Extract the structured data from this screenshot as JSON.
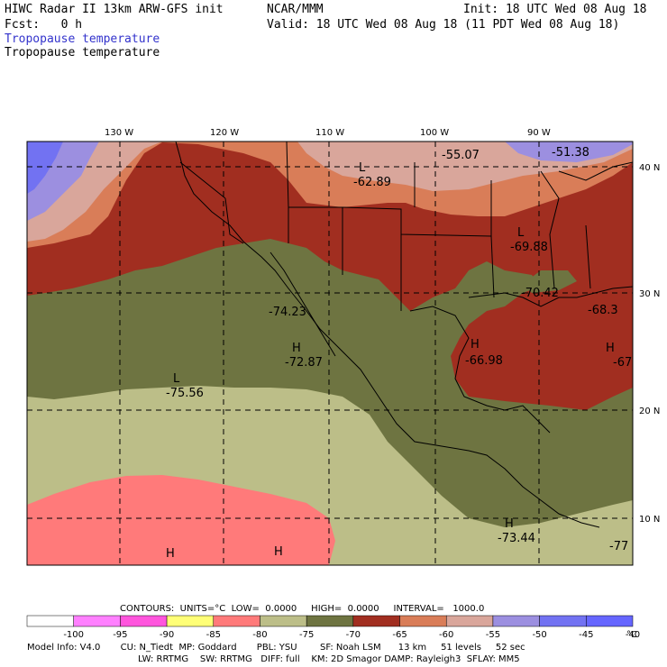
{
  "header": {
    "title_left": "HIWC Radar II 13km ARW-GFS init",
    "title_mid": "NCAR/MMM",
    "init_text": "Init: 18 UTC Wed 08 Aug 18",
    "fcst_text": "Fcst:   0 h",
    "valid_text": "Valid: 18 UTC Wed 08 Aug 18 (11 PDT Wed 08 Aug 18)",
    "field_colored": "Tropopause temperature",
    "field_black": "Tropopause temperature"
  },
  "map": {
    "lon_labels": [
      "130 W",
      "120 W",
      "110 W",
      "100 W",
      "90 W"
    ],
    "lat_labels": [
      "40 N",
      "30 N",
      "20 N",
      "10 N"
    ],
    "extrema": [
      {
        "type": "L",
        "value": "-62.89"
      },
      {
        "type": "",
        "value": "-55.07"
      },
      {
        "type": "",
        "value": "-51.38"
      },
      {
        "type": "L",
        "value": "-69.88"
      },
      {
        "type": "",
        "value": "-70.42"
      },
      {
        "type": "",
        "value": "-68.3"
      },
      {
        "type": "",
        "value": "-74.23"
      },
      {
        "type": "H",
        "value": "-72.87"
      },
      {
        "type": "H",
        "value": "-66.98"
      },
      {
        "type": "H",
        "value": "-67"
      },
      {
        "type": "L",
        "value": "-75.56"
      },
      {
        "type": "H",
        "value": "-73.44"
      },
      {
        "type": "",
        "value": "-77"
      },
      {
        "type": "H",
        "value": ""
      },
      {
        "type": "H",
        "value": ""
      }
    ],
    "colors": {
      "red_brown": "#a12e20",
      "orange": "#d97d58",
      "pink": "#d9a69b",
      "lavender": "#9c8fe0",
      "blue": "#7272f2",
      "olive": "#6e7441",
      "khaki": "#bcbe88",
      "salmon": "#ff7a7a"
    }
  },
  "colorbar": {
    "contour_line": "CONTOURS:  UNITS=°C  LOW=  0.0000     HIGH=  0.0000     INTERVAL=   1000.0",
    "ticks": [
      "-100",
      "-95",
      "-90",
      "-85",
      "-80",
      "-75",
      "-70",
      "-65",
      "-60",
      "-55",
      "-50",
      "-45",
      "-40"
    ],
    "unit": "°C",
    "colors": [
      "#ffffff",
      "#ff80ff",
      "#ff55dd",
      "#ffff77",
      "#ff7a7a",
      "#bcbe88",
      "#6e7441",
      "#a12e20",
      "#d97d58",
      "#d9a69b",
      "#9c8fe0",
      "#7272f2",
      "#6666ff"
    ]
  },
  "footer": {
    "model_info": "Model Info: V4.0       CU: N_Tiedt  MP: Goddard       PBL: YSU        SF: Noah LSM      13 km     51 levels     52 sec",
    "model_info2": "LW: RRTMG    SW: RRTMG   DIFF: full    KM: 2D Smagor DAMP: Rayleigh3  SFLAY: MM5"
  }
}
